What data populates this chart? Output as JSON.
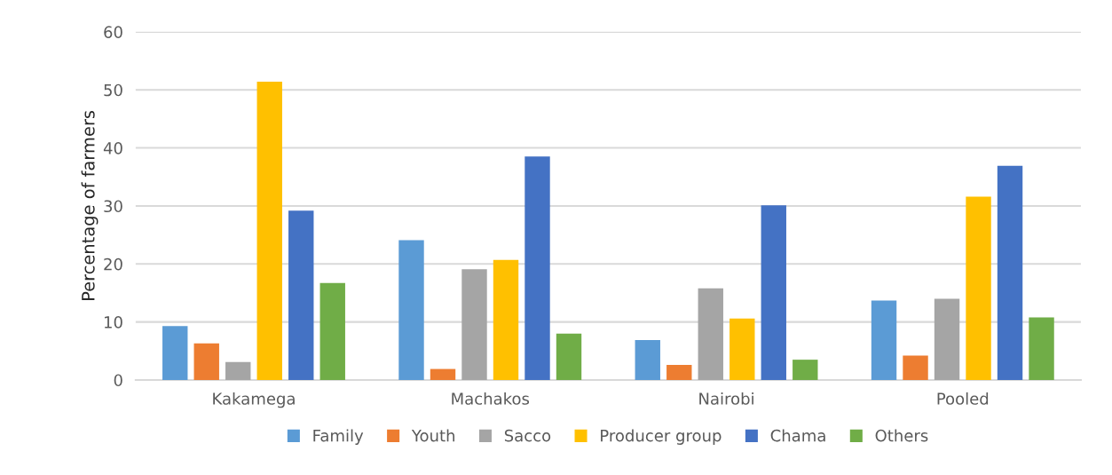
{
  "chart_data": {
    "type": "bar",
    "ylabel": "Percentage of farmers",
    "categories": [
      "Kakamega",
      "Machakos",
      "Nairobi",
      "Pooled"
    ],
    "series": [
      {
        "name": "Family",
        "color": "#5b9bd5",
        "values": [
          9.3,
          24.1,
          6.9,
          13.7
        ]
      },
      {
        "name": "Youth",
        "color": "#ed7d31",
        "values": [
          6.3,
          1.9,
          2.6,
          4.2
        ]
      },
      {
        "name": "Sacco",
        "color": "#a5a5a5",
        "values": [
          3.1,
          19.1,
          15.8,
          14.0
        ]
      },
      {
        "name": "Producer group",
        "color": "#ffc000",
        "values": [
          51.4,
          20.7,
          10.6,
          31.6
        ]
      },
      {
        "name": "Chama",
        "color": "#4472c4",
        "values": [
          29.2,
          38.5,
          30.1,
          36.9
        ]
      },
      {
        "name": "Others",
        "color": "#70ad47",
        "values": [
          16.7,
          8.0,
          3.5,
          10.8
        ]
      }
    ],
    "ylim": [
      0,
      60
    ],
    "yticks": [
      0,
      10,
      20,
      30,
      40,
      50,
      60
    ],
    "grid": "y",
    "legend": "bottom"
  }
}
